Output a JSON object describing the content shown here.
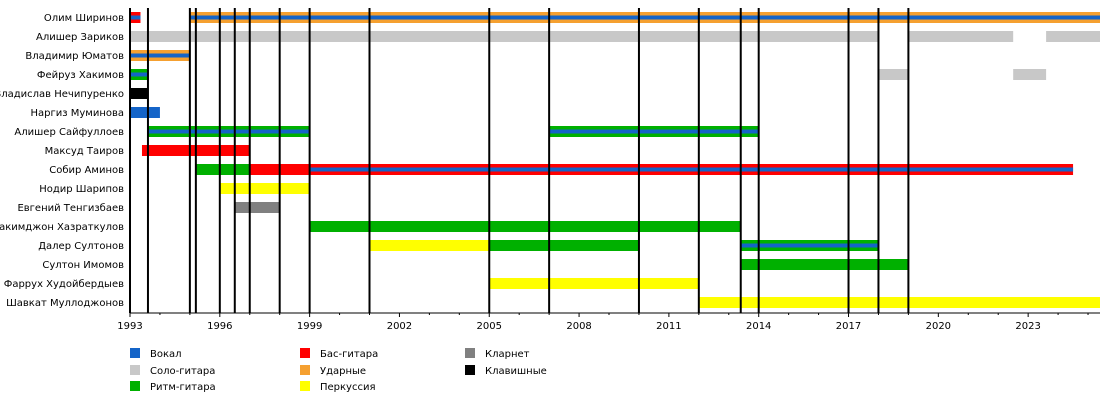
{
  "chart_data": {
    "type": "timeline",
    "x_range": [
      1993,
      2025.4
    ],
    "x_ticks": [
      1993,
      1996,
      1999,
      2002,
      2005,
      2008,
      2011,
      2014,
      2017,
      2020,
      2023
    ],
    "legend": [
      {
        "role": "vocal",
        "label": "Вокал",
        "color": "#1464c8"
      },
      {
        "role": "lead",
        "label": "Соло-гитара",
        "color": "#c8c8c8"
      },
      {
        "role": "rhythm",
        "label": "Ритм-гитара",
        "color": "#00b000"
      },
      {
        "role": "bass",
        "label": "Бас-гитара",
        "color": "#ff0000"
      },
      {
        "role": "drums",
        "label": "Ударные",
        "color": "#f5a030"
      },
      {
        "role": "perc",
        "label": "Перкуссия",
        "color": "#ffff00"
      },
      {
        "role": "clarinet",
        "label": "Кларнет",
        "color": "#808080"
      },
      {
        "role": "keys",
        "label": "Клавишные",
        "color": "#000000"
      }
    ],
    "event_years": [
      1993.0,
      1993.6,
      1995.0,
      1995.2,
      1996.0,
      1996.5,
      1997.0,
      1998.0,
      1999.0,
      2001.0,
      2005.0,
      2007.0,
      2010.0,
      2012.0,
      2013.4,
      2014.0,
      2017.0,
      2018.0,
      2019.0
    ],
    "members": [
      {
        "name": "Олим Ширинов",
        "bars": [
          {
            "role": "bass",
            "start": 1993.0,
            "end": 1993.35
          },
          {
            "role": "drums",
            "start": 1995.0,
            "end": 2025.4
          },
          {
            "role": "vocal",
            "start": 1993.0,
            "end": 1993.35,
            "sub": "stripe"
          },
          {
            "role": "vocal",
            "start": 1995.0,
            "end": 2025.4,
            "sub": "stripe"
          }
        ]
      },
      {
        "name": "Алишер Зариков",
        "bars": [
          {
            "role": "lead",
            "start": 1993.0,
            "end": 2018.0
          },
          {
            "role": "lead",
            "start": 2019.0,
            "end": 2022.5
          },
          {
            "role": "lead",
            "start": 2023.6,
            "end": 2025.4
          }
        ]
      },
      {
        "name": "Владимир Юматов",
        "bars": [
          {
            "role": "drums",
            "start": 1993.0,
            "end": 1995.0
          },
          {
            "role": "vocal",
            "start": 1993.0,
            "end": 1995.0,
            "sub": "stripe"
          }
        ]
      },
      {
        "name": "Фейруз Хакимов",
        "bars": [
          {
            "role": "rhythm",
            "start": 1993.0,
            "end": 1993.6
          },
          {
            "role": "lead",
            "start": 2018.0,
            "end": 2019.0
          },
          {
            "role": "lead",
            "start": 2022.5,
            "end": 2023.6
          },
          {
            "role": "vocal",
            "start": 1993.0,
            "end": 1993.6,
            "sub": "stripe"
          }
        ]
      },
      {
        "name": "Владислав Нечипуренко",
        "bars": [
          {
            "role": "keys",
            "start": 1993.0,
            "end": 1993.6
          }
        ]
      },
      {
        "name": "Наргиз Муминова",
        "bars": [
          {
            "role": "vocal",
            "start": 1993.0,
            "end": 1994.0
          }
        ]
      },
      {
        "name": "Алишер Сайфуллоев",
        "bars": [
          {
            "role": "rhythm",
            "start": 1993.6,
            "end": 1999.0
          },
          {
            "role": "rhythm",
            "start": 2007.0,
            "end": 2014.0
          },
          {
            "role": "vocal",
            "start": 1993.6,
            "end": 1999.0,
            "sub": "stripe"
          },
          {
            "role": "vocal",
            "start": 2007.0,
            "end": 2014.0,
            "sub": "stripe"
          }
        ]
      },
      {
        "name": "Максуд Таиров",
        "bars": [
          {
            "role": "bass",
            "start": 1993.4,
            "end": 1997.0
          }
        ]
      },
      {
        "name": "Собир Аминов",
        "bars": [
          {
            "role": "rhythm",
            "start": 1995.2,
            "end": 1997.0
          },
          {
            "role": "bass",
            "start": 1997.0,
            "end": 2024.5
          },
          {
            "role": "vocal",
            "start": 1999.0,
            "end": 2024.5,
            "sub": "stripe"
          }
        ]
      },
      {
        "name": "Нодир Шарипов",
        "bars": [
          {
            "role": "perc",
            "start": 1996.0,
            "end": 1999.0
          }
        ]
      },
      {
        "name": "Евгений Тенгизбаев",
        "bars": [
          {
            "role": "clarinet",
            "start": 1996.5,
            "end": 1998.0
          }
        ]
      },
      {
        "name": "Хакимджон Хазраткулов",
        "bars": [
          {
            "role": "rhythm",
            "start": 1999.0,
            "end": 2013.4
          }
        ]
      },
      {
        "name": "Далер Султонов",
        "bars": [
          {
            "role": "perc",
            "start": 2001.0,
            "end": 2005.0
          },
          {
            "role": "rhythm",
            "start": 2005.0,
            "end": 2010.0
          },
          {
            "role": "rhythm",
            "start": 2013.4,
            "end": 2018.0
          },
          {
            "role": "vocal",
            "start": 2013.4,
            "end": 2018.0,
            "sub": "stripe"
          }
        ]
      },
      {
        "name": "Султон Имомов",
        "bars": [
          {
            "role": "rhythm",
            "start": 2013.4,
            "end": 2019.0
          }
        ]
      },
      {
        "name": "Фаррух Худойбердыев",
        "bars": [
          {
            "role": "perc",
            "start": 2005.0,
            "end": 2012.0
          }
        ]
      },
      {
        "name": "Шавкат Муллоджонов",
        "bars": [
          {
            "role": "perc",
            "start": 2012.0,
            "end": 2025.4
          }
        ]
      }
    ]
  }
}
